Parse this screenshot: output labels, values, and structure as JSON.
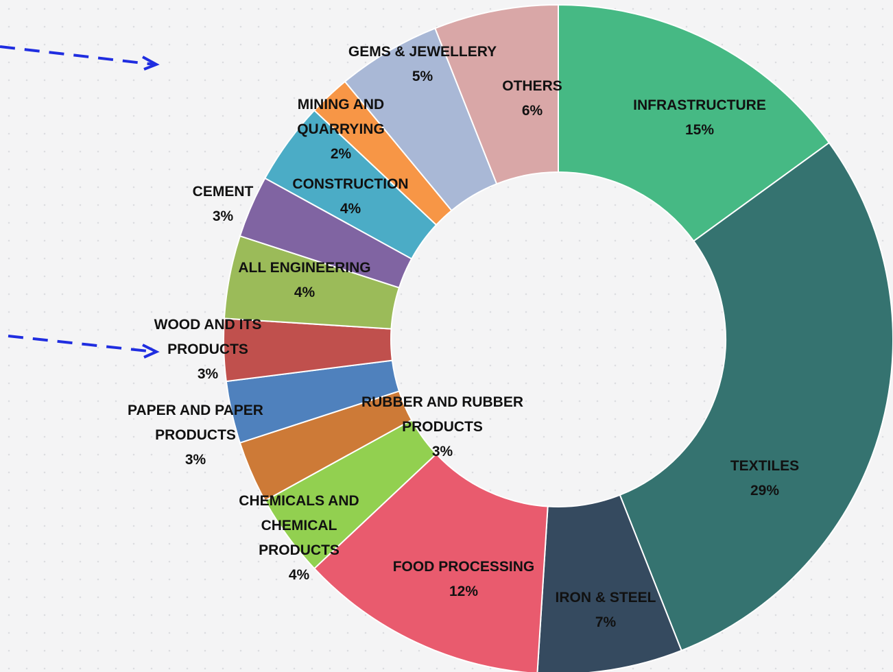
{
  "chart_data": {
    "type": "donut",
    "categories": [
      "INFRASTRUCTURE",
      "TEXTILES",
      "IRON & STEEL",
      "FOOD PROCESSING",
      "CHEMICALS AND CHEMICAL PRODUCTS",
      "RUBBER AND RUBBER PRODUCTS",
      "PAPER AND PAPER PRODUCTS",
      "WOOD AND ITS PRODUCTS",
      "ALL ENGINEERING",
      "CEMENT",
      "CONSTRUCTION",
      "MINING AND QUARRYING",
      "GEMS & JEWELLERY",
      "OTHERS"
    ],
    "values": [
      15,
      29,
      7,
      12,
      4,
      3,
      3,
      3,
      4,
      3,
      4,
      2,
      5,
      6
    ],
    "value_labels": [
      "15%",
      "29%",
      "7%",
      "12%",
      "4%",
      "3%",
      "3%",
      "3%",
      "4%",
      "3%",
      "4%",
      "2%",
      "5%",
      "6%"
    ],
    "colors": [
      "#46b984",
      "#357370",
      "#354a5f",
      "#e95b6e",
      "#92d050",
      "#cd7a37",
      "#4f81bd",
      "#c0504d",
      "#9bbb59",
      "#8064a2",
      "#4bacc6",
      "#f79646",
      "#a9b8d6",
      "#d9a7a7"
    ]
  }
}
